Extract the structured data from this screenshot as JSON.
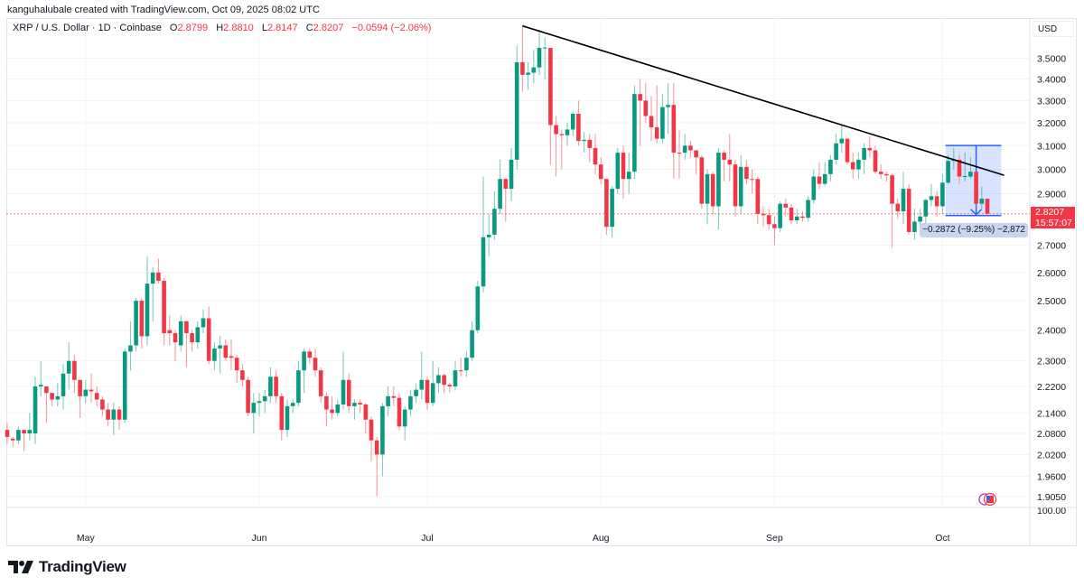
{
  "credit": "kanguhalubale created with TradingView.com, Oct 09, 2025 08:02 UTC",
  "legend": {
    "symbol": "XRP / U.S. Dollar · 1D · Coinbase",
    "o_label": "O",
    "o": "2.8799",
    "h_label": "H",
    "h": "2.8810",
    "l_label": "L",
    "l": "2.8147",
    "c_label": "C",
    "c": "2.8207",
    "change": "−0.0594 (−2.06%)"
  },
  "currency": "USD",
  "price_label": {
    "price": "2.8207",
    "countdown": "15:57:07"
  },
  "measure": {
    "label": "−0.2872 (−9.25%) −2,872",
    "from_date": "2025-10-02",
    "to_date": "2025-10-11",
    "top": 3.1007,
    "bottom": 2.8135,
    "arrow_date": "2025-10-07"
  },
  "volume_scale_label": "100.00",
  "footer": {
    "brand": "TradingView"
  },
  "colors": {
    "up": "#089981",
    "down": "#f23645",
    "measure": "#2962ff",
    "trendline": "#000000"
  },
  "icons": {
    "logo": "tradingview-logo-icon",
    "event": "us-flag-economic-event-icon"
  },
  "chart_data": {
    "type": "candlestick",
    "y_scale": "log",
    "y_range": [
      1.877,
      3.7
    ],
    "grid": true,
    "y_ticks": [
      3.5,
      3.4,
      3.3,
      3.2,
      3.1,
      3.0,
      2.9,
      2.7,
      2.6,
      2.5,
      2.4,
      2.3,
      2.22,
      2.14,
      2.08,
      2.02,
      1.96,
      1.905
    ],
    "y_tick_labels": [
      "3.5000",
      "3.4000",
      "3.3000",
      "3.2000",
      "3.1000",
      "3.0000",
      "2.9000",
      "2.7000",
      "2.6000",
      "2.5000",
      "2.4000",
      "2.3000",
      "2.2200",
      "2.1400",
      "2.0800",
      "2.0200",
      "1.9600",
      "1.9050"
    ],
    "x_ticks": [
      {
        "date": "2025-05-01",
        "label": "May"
      },
      {
        "date": "2025-06-01",
        "label": "Jun"
      },
      {
        "date": "2025-07-01",
        "label": "Jul"
      },
      {
        "date": "2025-08-01",
        "label": "Aug"
      },
      {
        "date": "2025-09-01",
        "label": "Sep"
      },
      {
        "date": "2025-10-01",
        "label": "Oct"
      }
    ],
    "last_price": 2.8207,
    "trendline": {
      "from": {
        "date": "2025-07-18",
        "price": 3.66
      },
      "to": {
        "date": "2025-10-12",
        "price": 2.975
      }
    },
    "candles_fields": [
      "date",
      "open",
      "high",
      "low",
      "close"
    ],
    "candles": [
      [
        "2025-04-17",
        2.09,
        2.11,
        2.05,
        2.07
      ],
      [
        "2025-04-18",
        2.065,
        2.07,
        2.04,
        2.06
      ],
      [
        "2025-04-19",
        2.06,
        2.1,
        2.05,
        2.09
      ],
      [
        "2025-04-20",
        2.09,
        2.09,
        2.03,
        2.08
      ],
      [
        "2025-04-21",
        2.08,
        2.14,
        2.06,
        2.09
      ],
      [
        "2025-04-22",
        2.08,
        2.25,
        2.05,
        2.22
      ],
      [
        "2025-04-23",
        2.22,
        2.3,
        2.19,
        2.225
      ],
      [
        "2025-04-24",
        2.22,
        2.22,
        2.11,
        2.2
      ],
      [
        "2025-04-25",
        2.2,
        2.2,
        2.16,
        2.18
      ],
      [
        "2025-04-26",
        2.18,
        2.23,
        2.16,
        2.19
      ],
      [
        "2025-04-27",
        2.19,
        2.29,
        2.15,
        2.26
      ],
      [
        "2025-04-28",
        2.26,
        2.36,
        2.21,
        2.3
      ],
      [
        "2025-04-29",
        2.3,
        2.32,
        2.2,
        2.24
      ],
      [
        "2025-04-30",
        2.24,
        2.24,
        2.125,
        2.19
      ],
      [
        "2025-05-01",
        2.19,
        2.24,
        2.17,
        2.21
      ],
      [
        "2025-05-02",
        2.21,
        2.26,
        2.17,
        2.205
      ],
      [
        "2025-05-03",
        2.2,
        2.22,
        2.16,
        2.18
      ],
      [
        "2025-05-04",
        2.18,
        2.19,
        2.13,
        2.15
      ],
      [
        "2025-05-05",
        2.15,
        2.17,
        2.1,
        2.12
      ],
      [
        "2025-05-06",
        2.12,
        2.17,
        2.075,
        2.15
      ],
      [
        "2025-05-07",
        2.15,
        2.16,
        2.09,
        2.12
      ],
      [
        "2025-05-08",
        2.12,
        2.34,
        2.11,
        2.33
      ],
      [
        "2025-05-09",
        2.33,
        2.43,
        2.27,
        2.35
      ],
      [
        "2025-05-10",
        2.35,
        2.51,
        2.33,
        2.5
      ],
      [
        "2025-05-11",
        2.5,
        2.51,
        2.34,
        2.38
      ],
      [
        "2025-05-12",
        2.38,
        2.66,
        2.35,
        2.56
      ],
      [
        "2025-05-13",
        2.56,
        2.62,
        2.43,
        2.6
      ],
      [
        "2025-05-14",
        2.6,
        2.65,
        2.56,
        2.57
      ],
      [
        "2025-05-15",
        2.57,
        2.58,
        2.35,
        2.39
      ],
      [
        "2025-05-16",
        2.4,
        2.45,
        2.35,
        2.39
      ],
      [
        "2025-05-17",
        2.39,
        2.4,
        2.3,
        2.36
      ],
      [
        "2025-05-18",
        2.35,
        2.45,
        2.33,
        2.43
      ],
      [
        "2025-05-19",
        2.43,
        2.43,
        2.28,
        2.39
      ],
      [
        "2025-05-20",
        2.39,
        2.4,
        2.33,
        2.36
      ],
      [
        "2025-05-21",
        2.36,
        2.43,
        2.34,
        2.41
      ],
      [
        "2025-05-22",
        2.41,
        2.47,
        2.39,
        2.44
      ],
      [
        "2025-05-23",
        2.44,
        2.48,
        2.29,
        2.3
      ],
      [
        "2025-05-24",
        2.3,
        2.36,
        2.27,
        2.34
      ],
      [
        "2025-05-25",
        2.34,
        2.38,
        2.26,
        2.35
      ],
      [
        "2025-05-26",
        2.35,
        2.37,
        2.3,
        2.31
      ],
      [
        "2025-05-27",
        2.315,
        2.37,
        2.27,
        2.31
      ],
      [
        "2025-05-28",
        2.31,
        2.32,
        2.23,
        2.27
      ],
      [
        "2025-05-29",
        2.27,
        2.29,
        2.22,
        2.24
      ],
      [
        "2025-05-30",
        2.24,
        2.25,
        2.13,
        2.14
      ],
      [
        "2025-05-31",
        2.14,
        2.2,
        2.08,
        2.17
      ],
      [
        "2025-06-01",
        2.17,
        2.2,
        2.13,
        2.175
      ],
      [
        "2025-06-02",
        2.175,
        2.21,
        2.14,
        2.19
      ],
      [
        "2025-06-03",
        2.19,
        2.28,
        2.17,
        2.25
      ],
      [
        "2025-06-04",
        2.25,
        2.27,
        2.17,
        2.19
      ],
      [
        "2025-06-05",
        2.19,
        2.2,
        2.06,
        2.09
      ],
      [
        "2025-06-06",
        2.09,
        2.18,
        2.07,
        2.16
      ],
      [
        "2025-06-07",
        2.16,
        2.18,
        2.14,
        2.17
      ],
      [
        "2025-06-08",
        2.17,
        2.3,
        2.16,
        2.27
      ],
      [
        "2025-06-09",
        2.27,
        2.34,
        2.2,
        2.33
      ],
      [
        "2025-06-10",
        2.33,
        2.34,
        2.29,
        2.31
      ],
      [
        "2025-06-11",
        2.31,
        2.34,
        2.25,
        2.27
      ],
      [
        "2025-06-12",
        2.27,
        2.28,
        2.17,
        2.19
      ],
      [
        "2025-06-13",
        2.19,
        2.2,
        2.1,
        2.15
      ],
      [
        "2025-06-14",
        2.15,
        2.19,
        2.12,
        2.14
      ],
      [
        "2025-06-15",
        2.14,
        2.18,
        2.13,
        2.165
      ],
      [
        "2025-06-16",
        2.165,
        2.33,
        2.15,
        2.24
      ],
      [
        "2025-06-17",
        2.24,
        2.26,
        2.14,
        2.16
      ],
      [
        "2025-06-18",
        2.16,
        2.18,
        2.12,
        2.17
      ],
      [
        "2025-06-19",
        2.17,
        2.18,
        2.14,
        2.165
      ],
      [
        "2025-06-20",
        2.165,
        2.17,
        2.08,
        2.12
      ],
      [
        "2025-06-21",
        2.12,
        2.13,
        2.0,
        2.06
      ],
      [
        "2025-06-22",
        2.06,
        2.07,
        1.907,
        2.02
      ],
      [
        "2025-06-23",
        2.02,
        2.17,
        1.96,
        2.16
      ],
      [
        "2025-06-24",
        2.16,
        2.22,
        2.13,
        2.19
      ],
      [
        "2025-06-25",
        2.19,
        2.22,
        2.16,
        2.185
      ],
      [
        "2025-06-26",
        2.185,
        2.2,
        2.09,
        2.1
      ],
      [
        "2025-06-27",
        2.1,
        2.16,
        2.06,
        2.15
      ],
      [
        "2025-06-28",
        2.15,
        2.21,
        2.13,
        2.19
      ],
      [
        "2025-06-29",
        2.19,
        2.23,
        2.17,
        2.21
      ],
      [
        "2025-06-30",
        2.21,
        2.33,
        2.18,
        2.24
      ],
      [
        "2025-07-01",
        2.24,
        2.25,
        2.15,
        2.17
      ],
      [
        "2025-07-02",
        2.17,
        2.3,
        2.16,
        2.23
      ],
      [
        "2025-07-03",
        2.23,
        2.28,
        2.2,
        2.255
      ],
      [
        "2025-07-04",
        2.255,
        2.26,
        2.2,
        2.225
      ],
      [
        "2025-07-05",
        2.225,
        2.23,
        2.2,
        2.22
      ],
      [
        "2025-07-06",
        2.22,
        2.3,
        2.21,
        2.27
      ],
      [
        "2025-07-07",
        2.27,
        2.31,
        2.25,
        2.268
      ],
      [
        "2025-07-08",
        2.27,
        2.33,
        2.25,
        2.31
      ],
      [
        "2025-07-09",
        2.31,
        2.43,
        2.3,
        2.4
      ],
      [
        "2025-07-10",
        2.4,
        2.57,
        2.39,
        2.55
      ],
      [
        "2025-07-11",
        2.55,
        2.97,
        2.53,
        2.73
      ],
      [
        "2025-07-12",
        2.73,
        2.82,
        2.66,
        2.74
      ],
      [
        "2025-07-13",
        2.74,
        2.91,
        2.72,
        2.84
      ],
      [
        "2025-07-14",
        2.84,
        3.04,
        2.82,
        2.96
      ],
      [
        "2025-07-15",
        2.96,
        2.96,
        2.79,
        2.92
      ],
      [
        "2025-07-16",
        2.92,
        3.09,
        2.87,
        3.04
      ],
      [
        "2025-07-17",
        3.04,
        3.56,
        3.0,
        3.48
      ],
      [
        "2025-07-18",
        3.48,
        3.66,
        3.34,
        3.42
      ],
      [
        "2025-07-19",
        3.42,
        3.48,
        3.35,
        3.43
      ],
      [
        "2025-07-20",
        3.43,
        3.54,
        3.38,
        3.455
      ],
      [
        "2025-07-21",
        3.455,
        3.64,
        3.42,
        3.55
      ],
      [
        "2025-07-22",
        3.55,
        3.6,
        3.4,
        3.552
      ],
      [
        "2025-07-23",
        3.55,
        3.55,
        3.02,
        3.19
      ],
      [
        "2025-07-24",
        3.19,
        3.23,
        2.97,
        3.15
      ],
      [
        "2025-07-25",
        3.15,
        3.17,
        3.0,
        3.145
      ],
      [
        "2025-07-26",
        3.145,
        3.2,
        3.1,
        3.17
      ],
      [
        "2025-07-27",
        3.17,
        3.25,
        3.14,
        3.24
      ],
      [
        "2025-07-28",
        3.24,
        3.3,
        3.1,
        3.12
      ],
      [
        "2025-07-29",
        3.12,
        3.16,
        3.07,
        3.125
      ],
      [
        "2025-07-30",
        3.125,
        3.15,
        3.03,
        3.09
      ],
      [
        "2025-07-31",
        3.09,
        3.15,
        2.98,
        3.02
      ],
      [
        "2025-08-01",
        3.02,
        3.05,
        2.94,
        2.96
      ],
      [
        "2025-08-02",
        2.96,
        2.96,
        2.74,
        2.77
      ],
      [
        "2025-08-03",
        2.77,
        2.93,
        2.73,
        2.92
      ],
      [
        "2025-08-04",
        2.92,
        3.09,
        2.9,
        3.07
      ],
      [
        "2025-08-05",
        3.07,
        3.1,
        2.88,
        2.96
      ],
      [
        "2025-08-06",
        2.96,
        3.07,
        2.9,
        2.99
      ],
      [
        "2025-08-07",
        2.99,
        3.37,
        2.96,
        3.33
      ],
      [
        "2025-08-08",
        3.33,
        3.4,
        3.1,
        3.3
      ],
      [
        "2025-08-09",
        3.3,
        3.38,
        3.2,
        3.23
      ],
      [
        "2025-08-10",
        3.23,
        3.32,
        3.12,
        3.18
      ],
      [
        "2025-08-11",
        3.18,
        3.37,
        3.11,
        3.13
      ],
      [
        "2025-08-12",
        3.13,
        3.33,
        3.11,
        3.27
      ],
      [
        "2025-08-13",
        3.27,
        3.38,
        3.15,
        3.28
      ],
      [
        "2025-08-14",
        3.28,
        3.38,
        2.96,
        3.07
      ],
      [
        "2025-08-15",
        3.07,
        3.17,
        2.96,
        3.068
      ],
      [
        "2025-08-16",
        3.07,
        3.15,
        3.04,
        3.1
      ],
      [
        "2025-08-17",
        3.1,
        3.12,
        3.05,
        3.08
      ],
      [
        "2025-08-18",
        3.08,
        3.08,
        2.98,
        3.05
      ],
      [
        "2025-08-19",
        3.05,
        3.06,
        2.84,
        2.86
      ],
      [
        "2025-08-20",
        2.86,
        3.0,
        2.78,
        2.98
      ],
      [
        "2025-08-21",
        2.98,
        2.99,
        2.82,
        2.85
      ],
      [
        "2025-08-22",
        2.85,
        3.09,
        2.76,
        3.07
      ],
      [
        "2025-08-23",
        3.07,
        3.08,
        2.95,
        3.04
      ],
      [
        "2025-08-24",
        3.04,
        3.15,
        2.95,
        3.02
      ],
      [
        "2025-08-25",
        3.02,
        3.04,
        2.81,
        2.85
      ],
      [
        "2025-08-26",
        2.85,
        3.06,
        2.82,
        3.01
      ],
      [
        "2025-08-27",
        3.01,
        3.04,
        2.94,
        2.96
      ],
      [
        "2025-08-28",
        2.96,
        3.0,
        2.9,
        2.958
      ],
      [
        "2025-08-29",
        2.96,
        2.97,
        2.78,
        2.82
      ],
      [
        "2025-08-30",
        2.82,
        2.85,
        2.77,
        2.815
      ],
      [
        "2025-08-31",
        2.815,
        2.84,
        2.76,
        2.78
      ],
      [
        "2025-09-01",
        2.78,
        2.81,
        2.7,
        2.765
      ],
      [
        "2025-09-02",
        2.765,
        2.87,
        2.75,
        2.86
      ],
      [
        "2025-09-03",
        2.86,
        2.88,
        2.81,
        2.845
      ],
      [
        "2025-09-04",
        2.845,
        2.86,
        2.78,
        2.795
      ],
      [
        "2025-09-05",
        2.795,
        2.84,
        2.78,
        2.81
      ],
      [
        "2025-09-06",
        2.81,
        2.83,
        2.79,
        2.805
      ],
      [
        "2025-09-07",
        2.805,
        2.89,
        2.79,
        2.875
      ],
      [
        "2025-09-08",
        2.875,
        3.0,
        2.86,
        2.97
      ],
      [
        "2025-09-09",
        2.97,
        3.03,
        2.92,
        2.94
      ],
      [
        "2025-09-10",
        2.94,
        3.03,
        2.93,
        2.98
      ],
      [
        "2025-09-11",
        2.98,
        3.06,
        2.95,
        3.04
      ],
      [
        "2025-09-12",
        3.04,
        3.15,
        3.02,
        3.11
      ],
      [
        "2025-09-13",
        3.11,
        3.19,
        3.07,
        3.13
      ],
      [
        "2025-09-14",
        3.13,
        3.13,
        3.02,
        3.03
      ],
      [
        "2025-09-15",
        3.03,
        3.07,
        2.96,
        3.0
      ],
      [
        "2025-09-16",
        3.0,
        3.07,
        2.96,
        3.04
      ],
      [
        "2025-09-17",
        3.04,
        3.11,
        2.98,
        3.09
      ],
      [
        "2025-09-18",
        3.09,
        3.14,
        3.05,
        3.08
      ],
      [
        "2025-09-19",
        3.08,
        3.1,
        2.98,
        2.99
      ],
      [
        "2025-09-20",
        2.99,
        3.02,
        2.96,
        2.98
      ],
      [
        "2025-09-21",
        2.98,
        2.99,
        2.95,
        2.975
      ],
      [
        "2025-09-22",
        2.975,
        2.98,
        2.69,
        2.86
      ],
      [
        "2025-09-23",
        2.86,
        2.88,
        2.8,
        2.83
      ],
      [
        "2025-09-24",
        2.83,
        2.99,
        2.78,
        2.92
      ],
      [
        "2025-09-25",
        2.92,
        2.94,
        2.74,
        2.75
      ],
      [
        "2025-09-26",
        2.75,
        2.84,
        2.72,
        2.79
      ],
      [
        "2025-09-27",
        2.79,
        2.84,
        2.77,
        2.81
      ],
      [
        "2025-09-28",
        2.81,
        2.88,
        2.78,
        2.875
      ],
      [
        "2025-09-29",
        2.875,
        2.94,
        2.85,
        2.89
      ],
      [
        "2025-09-30",
        2.89,
        2.91,
        2.81,
        2.85
      ],
      [
        "2025-10-01",
        2.85,
        2.98,
        2.82,
        2.945
      ],
      [
        "2025-10-02",
        2.945,
        3.06,
        2.94,
        3.035
      ],
      [
        "2025-10-03",
        3.035,
        3.09,
        3.0,
        3.04
      ],
      [
        "2025-10-04",
        3.04,
        3.06,
        2.94,
        2.97
      ],
      [
        "2025-10-05",
        2.97,
        3.07,
        2.95,
        2.972
      ],
      [
        "2025-10-06",
        2.97,
        3.05,
        2.96,
        2.99
      ],
      [
        "2025-10-07",
        2.99,
        2.99,
        2.84,
        2.86
      ],
      [
        "2025-10-08",
        2.86,
        2.93,
        2.84,
        2.88
      ],
      [
        "2025-10-09",
        2.8799,
        2.881,
        2.8147,
        2.8207
      ]
    ]
  }
}
